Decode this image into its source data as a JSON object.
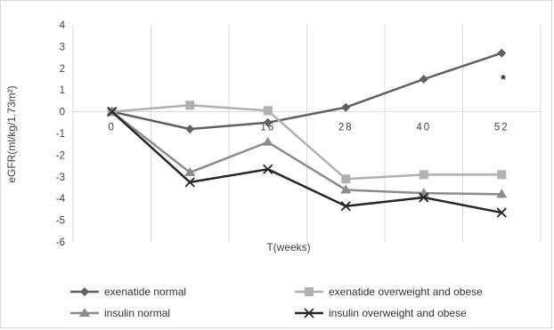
{
  "chart_data": {
    "type": "line",
    "title": "",
    "xlabel": "T(weeks)",
    "ylabel": "eGFR(ml/kg/1.73m²)",
    "ylim": [
      -6,
      4
    ],
    "yticks": [
      4,
      3,
      2,
      1,
      0,
      -1,
      -2,
      -3,
      -4,
      -5,
      -6
    ],
    "categories": [
      "0",
      "",
      "16",
      "28",
      "40",
      "52"
    ],
    "grid": "vertical",
    "legend_position": "bottom",
    "annotation": {
      "text": "*",
      "near": "52"
    },
    "series": [
      {
        "name": "exenatide normal",
        "marker": "diamond",
        "color": "#606060",
        "values": [
          0,
          -0.8,
          -0.5,
          0.2,
          1.5,
          2.7
        ]
      },
      {
        "name": "exenatide overweight and obese",
        "marker": "square",
        "color": "#b0b0b0",
        "values": [
          0,
          0.3,
          0.05,
          -3.1,
          -2.9,
          -2.9
        ]
      },
      {
        "name": "insulin normal",
        "marker": "triangle",
        "color": "#8c8c8c",
        "values": [
          0,
          -2.8,
          -1.4,
          -3.6,
          -3.75,
          -3.8
        ]
      },
      {
        "name": "insulin overweight and obese",
        "marker": "x",
        "color": "#262626",
        "values": [
          0,
          -3.25,
          -2.65,
          -4.35,
          -3.95,
          -4.65
        ]
      }
    ]
  }
}
